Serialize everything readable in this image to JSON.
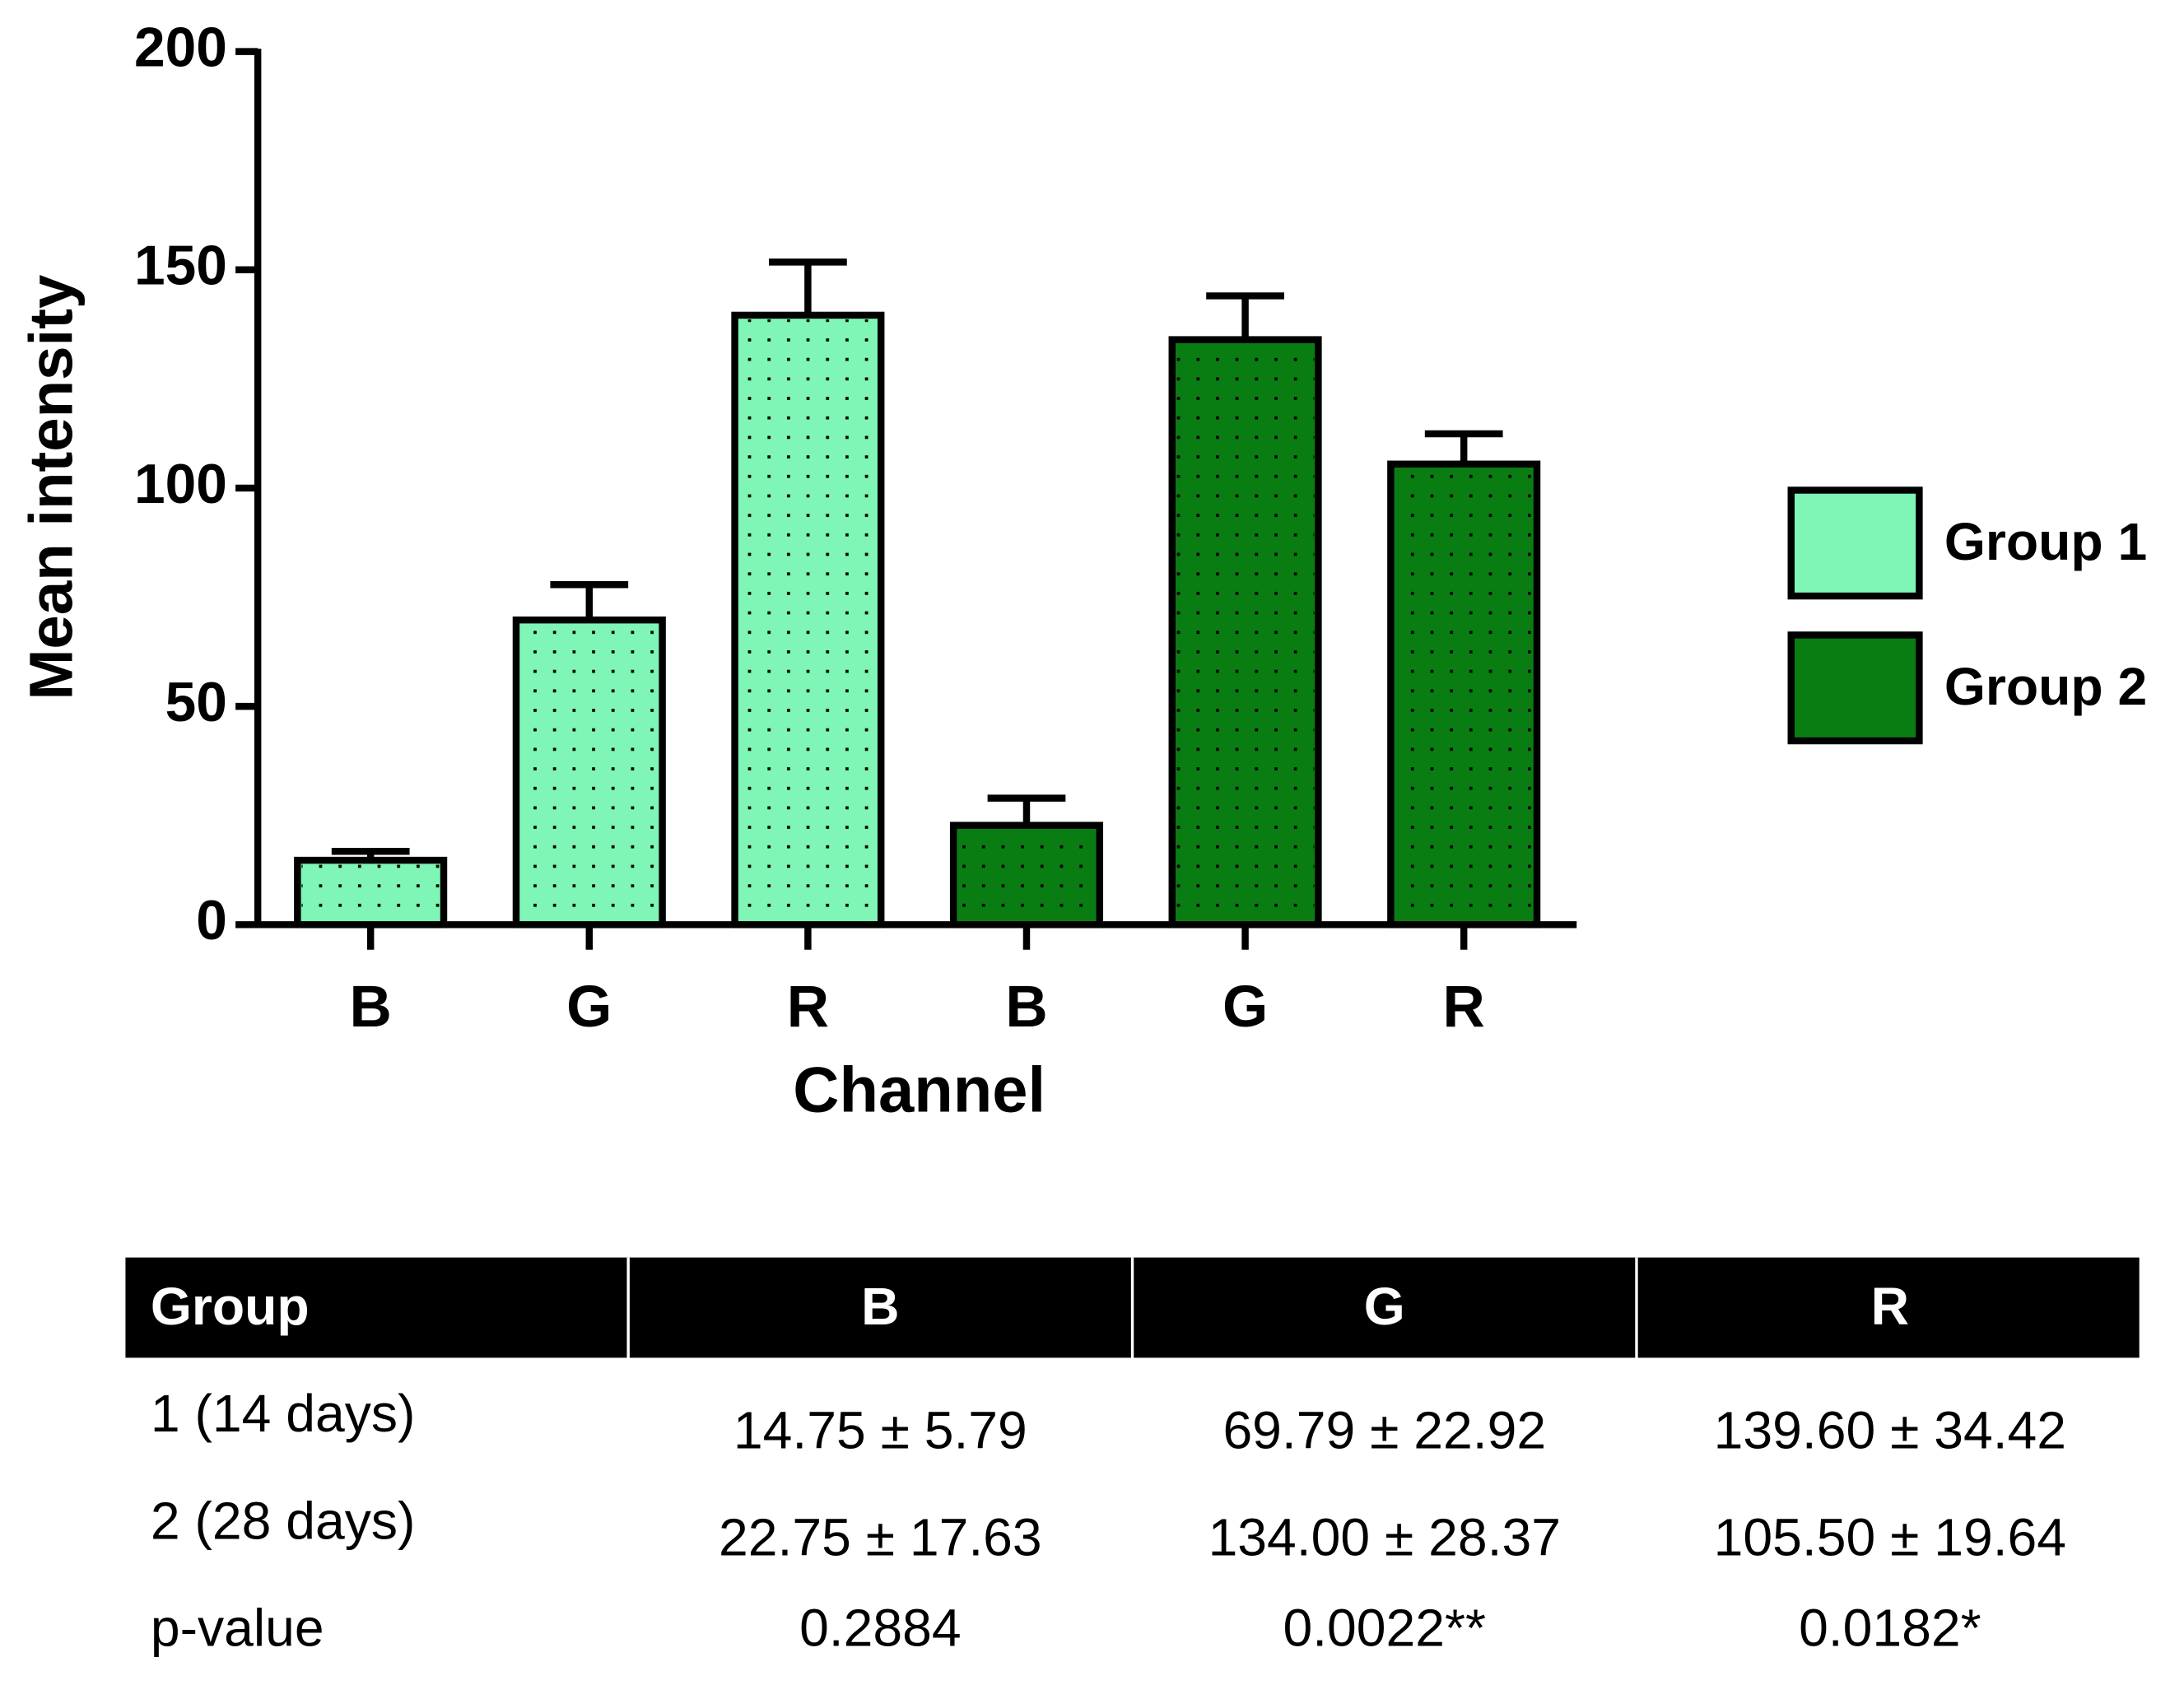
{
  "chart_data": {
    "type": "bar",
    "ylabel": "Mean intensity",
    "xlabel": "Channel",
    "categories": [
      "B",
      "G",
      "R",
      "B",
      "G",
      "R"
    ],
    "series": [
      {
        "name": "Group 1",
        "color": "#7ff5b6",
        "values": [
          14.75,
          69.79,
          139.6,
          null,
          null,
          null
        ],
        "errors": [
          2.05,
          8.1,
          12.17,
          null,
          null,
          null
        ]
      },
      {
        "name": "Group 2",
        "color": "#0a7d12",
        "values": [
          null,
          null,
          null,
          22.75,
          134.0,
          105.5
        ],
        "errors": [
          null,
          null,
          null,
          6.23,
          10.03,
          6.94
        ]
      }
    ],
    "ylim": [
      0,
      200
    ],
    "yticks": [
      0,
      50,
      100,
      150,
      200
    ],
    "grid": false,
    "legend": "right"
  },
  "table": {
    "header": [
      "Group",
      "B",
      "G",
      "R"
    ],
    "rows": [
      [
        "1 (14 days)",
        "14.75 ± 5.79",
        "69.79 ± 22.92",
        "139.60 ± 34.42"
      ],
      [
        "2 (28 days)",
        "22.75 ± 17.63",
        "134.00 ± 28.37",
        "105.50 ± 19.64"
      ],
      [
        "p-value",
        "0.2884",
        "0.0022**",
        "0.0182*"
      ]
    ]
  }
}
